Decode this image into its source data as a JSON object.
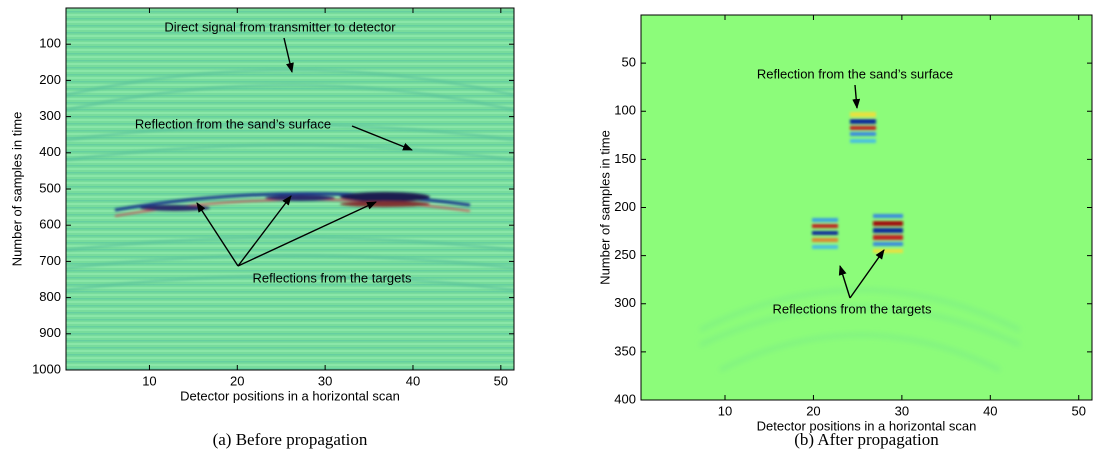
{
  "chart_data": [
    {
      "type": "image",
      "caption": "(a) Before propagation",
      "xlabel": "Detector positions in a horizontal scan",
      "ylabel": "Number of samples in time",
      "xlim": [
        0.5,
        51.5
      ],
      "ylim": [
        0,
        1000
      ],
      "y_reversed": true,
      "xticks": [
        10,
        20,
        30,
        40,
        50
      ],
      "yticks": [
        100,
        200,
        300,
        400,
        500,
        600,
        700,
        800,
        900,
        1000
      ],
      "annotations": [
        "Direct signal from transmitter to detector",
        "Reflection from the sand’s surface",
        "Reflections from the targets"
      ]
    },
    {
      "type": "image",
      "caption": "(b) After propagation",
      "xlabel": "Detector positions in a horizontal scan",
      "ylabel": "Number of samples in time",
      "xlim": [
        0.5,
        51.5
      ],
      "ylim": [
        0,
        400
      ],
      "y_reversed": true,
      "xticks": [
        10,
        20,
        30,
        40,
        50
      ],
      "yticks": [
        50,
        100,
        150,
        200,
        250,
        300,
        350,
        400
      ],
      "annotations": [
        "Reflection from the sand’s surface",
        "Reflections from the targets"
      ]
    }
  ]
}
